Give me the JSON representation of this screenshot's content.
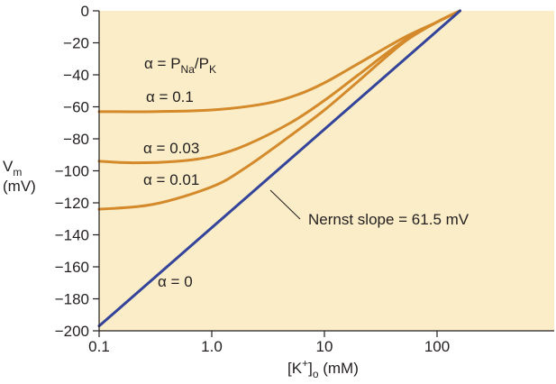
{
  "chart_data": {
    "type": "line",
    "x_scale": "log",
    "xlabel": {
      "main": "[K",
      "sup": "+",
      "close": "]",
      "sub": "o",
      "unit": " (mM)"
    },
    "ylabel": {
      "main": "V",
      "sub": "m",
      "unit": "(mV)"
    },
    "xlim": [
      0.1,
      1000
    ],
    "ylim": [
      -200,
      0
    ],
    "x_ticks": [
      {
        "value": 0.1,
        "label": "0.1"
      },
      {
        "value": 1,
        "label": "1.0"
      },
      {
        "value": 10,
        "label": "10"
      },
      {
        "value": 100,
        "label": "100"
      }
    ],
    "y_ticks": [
      {
        "value": 0,
        "label": "0"
      },
      {
        "value": -20,
        "label": "−20"
      },
      {
        "value": -40,
        "label": "−40"
      },
      {
        "value": -60,
        "label": "−60"
      },
      {
        "value": -80,
        "label": "−80"
      },
      {
        "value": -100,
        "label": "−100"
      },
      {
        "value": -120,
        "label": "−120"
      },
      {
        "value": -140,
        "label": "−140"
      },
      {
        "value": -160,
        "label": "−160"
      },
      {
        "value": -180,
        "label": "−180"
      },
      {
        "value": -200,
        "label": "−200"
      }
    ],
    "grid": false,
    "series": [
      {
        "name": "α = 0.1",
        "color": "#d4892b",
        "points": [
          [
            0.1,
            -63
          ],
          [
            0.3,
            -63
          ],
          [
            1,
            -62
          ],
          [
            3,
            -58
          ],
          [
            6,
            -52
          ],
          [
            10,
            -45
          ],
          [
            20,
            -33
          ],
          [
            50,
            -17
          ],
          [
            100,
            -7
          ],
          [
            160,
            0
          ]
        ]
      },
      {
        "name": "α = 0.03",
        "color": "#d4892b",
        "points": [
          [
            0.1,
            -94
          ],
          [
            0.2,
            -95
          ],
          [
            0.5,
            -94
          ],
          [
            1,
            -91
          ],
          [
            2,
            -84
          ],
          [
            5,
            -70
          ],
          [
            10,
            -56
          ],
          [
            20,
            -40
          ],
          [
            50,
            -19
          ],
          [
            100,
            -7
          ],
          [
            160,
            0
          ]
        ]
      },
      {
        "name": "α = 0.01",
        "color": "#d4892b",
        "points": [
          [
            0.1,
            -124
          ],
          [
            0.3,
            -121
          ],
          [
            1,
            -110
          ],
          [
            2,
            -98
          ],
          [
            5,
            -78
          ],
          [
            10,
            -62
          ],
          [
            20,
            -44
          ],
          [
            50,
            -20
          ],
          [
            100,
            -7
          ],
          [
            160,
            0
          ]
        ]
      },
      {
        "name": "α = 0",
        "color": "#33449a",
        "points": [
          [
            0.1,
            -197
          ],
          [
            160,
            0
          ]
        ]
      }
    ],
    "annotations": {
      "legend_title": {
        "alpha": "α = P",
        "sub1": "Na",
        "slash": "/P",
        "sub2": "K"
      },
      "nernst": "Nernst slope = 61.5 mV"
    }
  }
}
